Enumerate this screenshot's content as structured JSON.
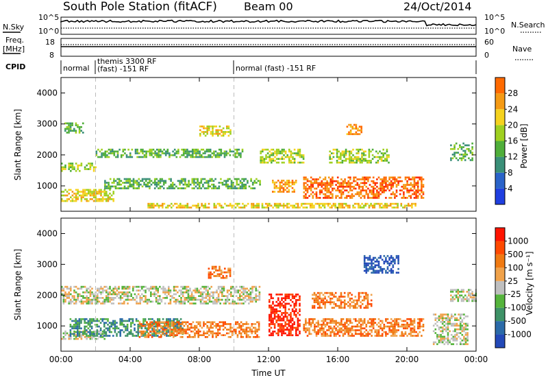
{
  "header": {
    "station": "South Pole Station (fitACF)",
    "beam": "Beam 00",
    "date": "24/Oct/2014"
  },
  "strip_labels": {
    "nsky": "N.Sky",
    "nsearch": "N.Search",
    "freq_line1": "Freq.",
    "freq_line2": "[MHz]",
    "nave": "Nave",
    "cpid": "CPID",
    "nsky_ticks": [
      "10^5",
      "10^0"
    ],
    "nsearch_ticks": [
      "10^5",
      "10^0"
    ],
    "freq_ticks": [
      "18",
      "8"
    ],
    "nave_ticks": [
      "60",
      "0"
    ]
  },
  "cpid_segments": [
    {
      "line1": "normal",
      "line2": ""
    },
    {
      "line1": "themis 3300 RF",
      "line2": "(fast) -151 RF"
    },
    {
      "line1": "normal (fast) -151 RF",
      "line2": ""
    }
  ],
  "colors": {
    "power": [
      "#1f3fe0",
      "#2a63c9",
      "#3a8f78",
      "#4fae3a",
      "#9fd020",
      "#f5d21e",
      "#f59a14",
      "#ff6a00",
      "#ff2a00"
    ],
    "velocity": [
      "#2349b8",
      "#2b6aa8",
      "#3e9267",
      "#55b43c",
      "#bfbfbf",
      "#f0a24a",
      "#f07a12",
      "#ff4a00",
      "#ff1400"
    ]
  },
  "chart_data": [
    {
      "type": "heatmap",
      "title": "",
      "xlabel": "",
      "ylabel": "Slant Range [km]",
      "colorbar_label": "Power [dB]",
      "colorbar_ticks": [
        "28",
        "24",
        "20",
        "16",
        "12",
        "8",
        "4"
      ],
      "x_ticks": [
        "00:00",
        "04:00",
        "08:00",
        "12:00",
        "16:00",
        "20:00",
        "00:00"
      ],
      "y_ticks": [
        "1000",
        "2000",
        "3000",
        "4000"
      ],
      "xlim": [
        0,
        24
      ],
      "ylim": [
        180,
        4500
      ],
      "scatter_bands": [
        {
          "t0": 0.0,
          "t1": 2.0,
          "r0": 1500,
          "r1": 1750,
          "level": 4
        },
        {
          "t0": 0.2,
          "t1": 1.3,
          "r0": 2750,
          "r1": 3050,
          "level": 3
        },
        {
          "t0": 0.0,
          "t1": 3.0,
          "r0": 500,
          "r1": 900,
          "level": 5
        },
        {
          "t0": 2.0,
          "t1": 10.5,
          "r0": 1950,
          "r1": 2200,
          "level": 3
        },
        {
          "t0": 2.5,
          "t1": 11.5,
          "r0": 900,
          "r1": 1250,
          "level": 3
        },
        {
          "t0": 8.0,
          "t1": 9.8,
          "r0": 2600,
          "r1": 2950,
          "level": 5
        },
        {
          "t0": 11.5,
          "t1": 14.0,
          "r0": 1750,
          "r1": 2200,
          "level": 4
        },
        {
          "t0": 12.2,
          "t1": 13.6,
          "r0": 800,
          "r1": 1200,
          "level": 6
        },
        {
          "t0": 14.0,
          "t1": 21.0,
          "r0": 600,
          "r1": 1300,
          "level": 7
        },
        {
          "t0": 15.5,
          "t1": 19.0,
          "r0": 1750,
          "r1": 2200,
          "level": 4
        },
        {
          "t0": 16.5,
          "t1": 17.4,
          "r0": 2700,
          "r1": 3000,
          "level": 6
        },
        {
          "t0": 22.5,
          "t1": 23.8,
          "r0": 1850,
          "r1": 2400,
          "level": 3
        },
        {
          "t0": 5.0,
          "t1": 20.5,
          "r0": 300,
          "r1": 450,
          "level": 5
        }
      ]
    },
    {
      "type": "heatmap",
      "title": "",
      "xlabel": "Time UT",
      "ylabel": "Slant Range [km]",
      "colorbar_label": "Velocity [m s⁻¹]",
      "colorbar_ticks": [
        "1000",
        "500",
        "100",
        "25",
        "-25",
        "-100",
        "-500",
        "-1000"
      ],
      "x_ticks": [
        "00:00",
        "04:00",
        "08:00",
        "12:00",
        "16:00",
        "20:00",
        "00:00"
      ],
      "y_ticks": [
        "1000",
        "2000",
        "3000",
        "4000"
      ],
      "xlim": [
        0,
        24
      ],
      "ylim": [
        180,
        4500
      ],
      "scatter_bands": [
        {
          "t0": 0.0,
          "t1": 11.5,
          "r0": 1700,
          "r1": 2300,
          "level": 4
        },
        {
          "t0": 0.0,
          "t1": 2.5,
          "r0": 550,
          "r1": 850,
          "level": 4
        },
        {
          "t0": 0.5,
          "t1": 7.0,
          "r0": 700,
          "r1": 1250,
          "level": 2
        },
        {
          "t0": 4.5,
          "t1": 11.5,
          "r0": 650,
          "r1": 1150,
          "level": 6
        },
        {
          "t0": 8.5,
          "t1": 9.8,
          "r0": 2550,
          "r1": 2950,
          "level": 6
        },
        {
          "t0": 12.0,
          "t1": 13.8,
          "r0": 700,
          "r1": 2050,
          "level": 8
        },
        {
          "t0": 14.0,
          "t1": 21.0,
          "r0": 700,
          "r1": 1250,
          "level": 6
        },
        {
          "t0": 14.5,
          "t1": 18.0,
          "r0": 1600,
          "r1": 2100,
          "level": 6
        },
        {
          "t0": 17.5,
          "t1": 19.5,
          "r0": 2700,
          "r1": 3300,
          "level": 0
        },
        {
          "t0": 21.5,
          "t1": 23.5,
          "r0": 400,
          "r1": 1400,
          "level": 4
        },
        {
          "t0": 22.5,
          "t1": 24.0,
          "r0": 1800,
          "r1": 2200,
          "level": 4
        }
      ]
    }
  ]
}
